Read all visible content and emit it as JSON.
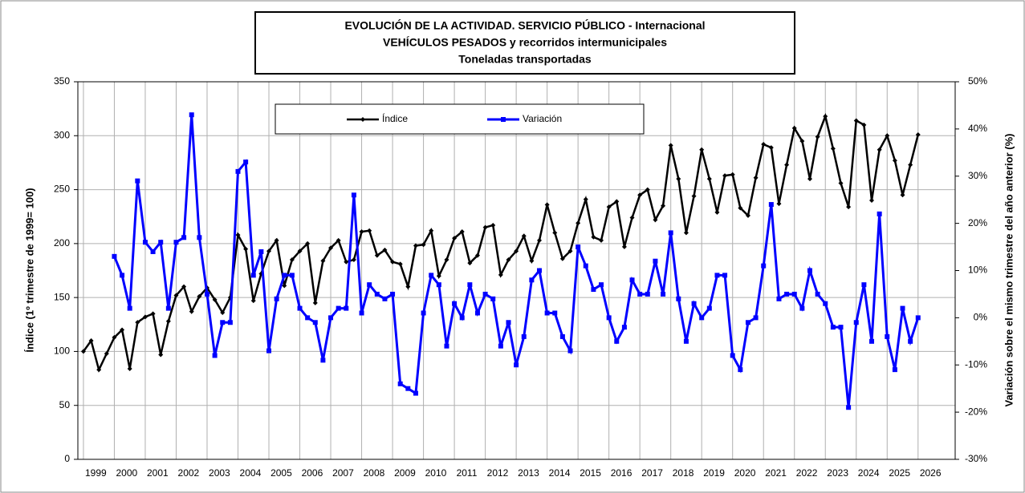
{
  "chart_data": {
    "type": "line",
    "title": [
      "EVOLUCIÓN DE LA ACTIVIDAD. SERVICIO PÚBLICO - Internacional",
      "VEHÍCULOS PESADOS y recorridos intermunicipales",
      "Toneladas transportadas"
    ],
    "y_label": "Índice (1º trimestre de 1999= 100)",
    "y2_label": "Variación sobre el mismo trimestre del año anterior (%)",
    "x": [
      1999,
      1999.25,
      1999.5,
      1999.75,
      2000,
      2000.25,
      2000.5,
      2000.75,
      2001,
      2001.25,
      2001.5,
      2001.75,
      2002,
      2002.25,
      2002.5,
      2002.75,
      2003,
      2003.25,
      2003.5,
      2003.75,
      2004,
      2004.25,
      2004.5,
      2004.75,
      2005,
      2005.25,
      2005.5,
      2005.75,
      2006,
      2006.25,
      2006.5,
      2006.75,
      2007,
      2007.25,
      2007.5,
      2007.75,
      2008,
      2008.25,
      2008.5,
      2008.75,
      2009,
      2009.25,
      2009.5,
      2009.75,
      2010,
      2010.25,
      2010.5,
      2010.75,
      2011,
      2011.25,
      2011.5,
      2011.75,
      2012,
      2012.25,
      2012.5,
      2012.75,
      2013,
      2013.25,
      2013.5,
      2013.75,
      2014,
      2014.25,
      2014.5,
      2014.75,
      2015,
      2015.25,
      2015.5,
      2015.75,
      2016,
      2016.25,
      2016.5,
      2016.75,
      2017,
      2017.25,
      2017.5,
      2017.75,
      2018,
      2018.25,
      2018.5,
      2018.75,
      2019,
      2019.25,
      2019.5,
      2019.75,
      2020,
      2020.25,
      2020.5,
      2020.75,
      2021,
      2021.25,
      2021.5,
      2021.75,
      2022,
      2022.25,
      2022.5,
      2022.75,
      2023,
      2023.25,
      2023.5,
      2023.75,
      2024,
      2024.25,
      2024.5,
      2024.75,
      2025,
      2025.25,
      2025.5,
      2025.75,
      2026
    ],
    "xlim": [
      1998.82,
      2027.2
    ],
    "xticks": [
      1999,
      2000,
      2001,
      2002,
      2003,
      2004,
      2005,
      2006,
      2007,
      2008,
      2009,
      2010,
      2011,
      2012,
      2013,
      2014,
      2015,
      2016,
      2017,
      2018,
      2019,
      2020,
      2021,
      2022,
      2023,
      2024,
      2025,
      2026
    ],
    "ylim": [
      0,
      350
    ],
    "yticks": [
      0,
      50,
      100,
      150,
      200,
      250,
      300,
      350
    ],
    "y2lim": [
      -30,
      50
    ],
    "y2ticks": [
      {
        "value": -30,
        "label": "-30%"
      },
      {
        "value": -20,
        "label": "-20%"
      },
      {
        "value": -10,
        "label": "-10%"
      },
      {
        "value": 0,
        "label": "0%"
      },
      {
        "value": 10,
        "label": "10%"
      },
      {
        "value": 20,
        "label": "20%"
      },
      {
        "value": 30,
        "label": "30%"
      },
      {
        "value": 40,
        "label": "40%"
      },
      {
        "value": 50,
        "label": "50%"
      }
    ],
    "grid": true,
    "legend": "top",
    "series": [
      {
        "name": "Índice",
        "color": "#000000",
        "marker": "diamond",
        "values": [
          100,
          110,
          83,
          98,
          113,
          120,
          84,
          127,
          132,
          135,
          97,
          128,
          152,
          160,
          137,
          151,
          159,
          148,
          136,
          150,
          208,
          195,
          147,
          172,
          193,
          203,
          161,
          185,
          193,
          200,
          145,
          184,
          196,
          203,
          183,
          185,
          211,
          212,
          189,
          194,
          183,
          181,
          160,
          198,
          199,
          212,
          170,
          185,
          205,
          211,
          182,
          189,
          215,
          217,
          171,
          185,
          193,
          207,
          184,
          203,
          236,
          210,
          186,
          193,
          219,
          241,
          206,
          203,
          234,
          239,
          197,
          224,
          245,
          250,
          222,
          235,
          291,
          260,
          210,
          244,
          287,
          260,
          229,
          263,
          264,
          233,
          226,
          261,
          292,
          289,
          237,
          273,
          307,
          295,
          260,
          299,
          318,
          288,
          256,
          234,
          314,
          310,
          240,
          287,
          300,
          277,
          245,
          273,
          301
        ]
      },
      {
        "name": "Variación",
        "color": "#0000ff",
        "marker": "square",
        "axis": "y2",
        "values": [
          null,
          null,
          null,
          null,
          13,
          9,
          2,
          29,
          16,
          14,
          16,
          2,
          16,
          17,
          43,
          17,
          5,
          -8,
          -1,
          -1,
          31,
          33,
          9,
          14,
          -7,
          4,
          9,
          9,
          2,
          0,
          -1,
          -9,
          0,
          2,
          2,
          26,
          1,
          7,
          5,
          4,
          5,
          -14,
          -15,
          -16,
          1,
          9,
          7,
          -6,
          3,
          0,
          7,
          1,
          5,
          4,
          -6,
          -1,
          -10,
          -4,
          8,
          10,
          1,
          1,
          -4,
          -7,
          15,
          11,
          6,
          7,
          0,
          -5,
          -2,
          8,
          5,
          5,
          12,
          5,
          18,
          4,
          -5,
          3,
          0,
          2,
          9,
          9,
          -8,
          -11,
          -1,
          0,
          11,
          24,
          4,
          5,
          5,
          2,
          10,
          5,
          3,
          -2,
          -2,
          -19,
          -1,
          7,
          -5,
          22,
          -4,
          -11,
          2,
          -5,
          0
        ]
      }
    ]
  }
}
